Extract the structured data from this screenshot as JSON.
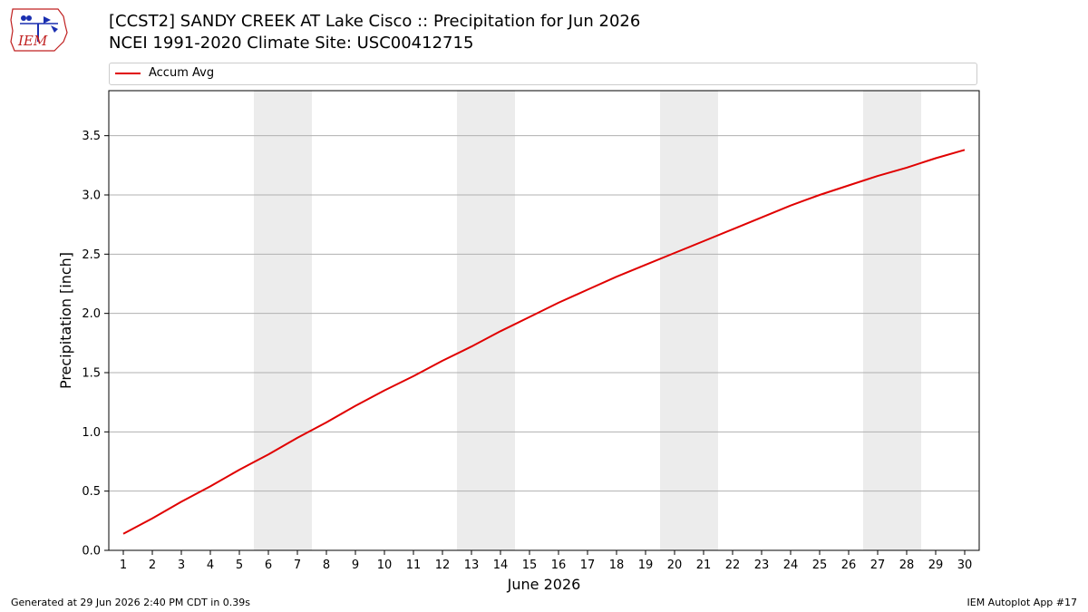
{
  "header": {
    "title_line1": "[CCST2] SANDY CREEK  AT Lake Cisco :: Precipitation for Jun 2026",
    "title_line2": "NCEI 1991-2020 Climate Site: USC00412715"
  },
  "logo": {
    "text": "IEM"
  },
  "footer": {
    "generated": "Generated at 29 Jun 2026 2:40 PM CDT in 0.39s",
    "app": "IEM Autoplot App #17"
  },
  "colors": {
    "line": "#e00000",
    "weekend_band": "#ececec",
    "grid": "#b0b0b0"
  },
  "chart_data": {
    "type": "line",
    "title": "[CCST2] SANDY CREEK  AT Lake Cisco :: Precipitation for Jun 2026",
    "subtitle": "NCEI 1991-2020 Climate Site: USC00412715",
    "xlabel": "June 2026",
    "ylabel": "Precipitation [inch]",
    "xlim": [
      0.5,
      30.5
    ],
    "ylim": [
      0,
      3.88
    ],
    "x_ticks": [
      1,
      2,
      3,
      4,
      5,
      6,
      7,
      8,
      9,
      10,
      11,
      12,
      13,
      14,
      15,
      16,
      17,
      18,
      19,
      20,
      21,
      22,
      23,
      24,
      25,
      26,
      27,
      28,
      29,
      30
    ],
    "y_ticks": [
      0.0,
      0.5,
      1.0,
      1.5,
      2.0,
      2.5,
      3.0,
      3.5
    ],
    "y_tick_labels": [
      "0.0",
      "0.5",
      "1.0",
      "1.5",
      "2.0",
      "2.5",
      "3.0",
      "3.5"
    ],
    "grid": "horizontal",
    "legend_position": "top",
    "weekend_bands": [
      [
        5.5,
        7.5
      ],
      [
        12.5,
        14.5
      ],
      [
        19.5,
        21.5
      ],
      [
        26.5,
        28.5
      ]
    ],
    "series": [
      {
        "name": "Accum Avg",
        "x": [
          1,
          2,
          3,
          4,
          5,
          6,
          7,
          8,
          9,
          10,
          11,
          12,
          13,
          14,
          15,
          16,
          17,
          18,
          19,
          20,
          21,
          22,
          23,
          24,
          25,
          26,
          27,
          28,
          29,
          30
        ],
        "values": [
          0.14,
          0.27,
          0.41,
          0.54,
          0.68,
          0.81,
          0.95,
          1.08,
          1.22,
          1.35,
          1.47,
          1.6,
          1.72,
          1.85,
          1.97,
          2.09,
          2.2,
          2.31,
          2.41,
          2.51,
          2.61,
          2.71,
          2.81,
          2.91,
          3.0,
          3.08,
          3.16,
          3.23,
          3.31,
          3.38
        ]
      }
    ]
  }
}
